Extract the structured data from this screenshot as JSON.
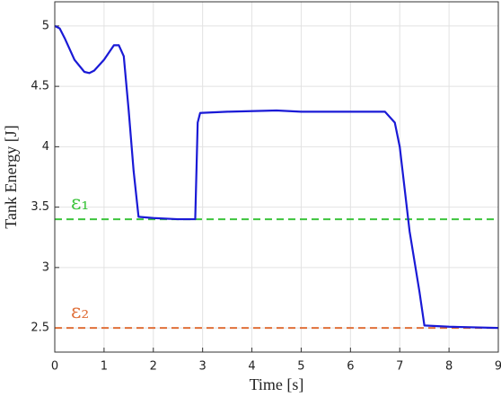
{
  "chart_data": {
    "type": "line",
    "xlabel": "Time [s]",
    "ylabel": "Tank Energy [J]",
    "x": [
      0,
      0.1,
      0.2,
      0.4,
      0.6,
      0.7,
      0.8,
      1.0,
      1.2,
      1.3,
      1.4,
      1.5,
      1.6,
      1.7,
      2.0,
      2.5,
      2.85,
      2.9,
      2.95,
      3.5,
      4.5,
      5,
      6,
      6.5,
      6.7,
      6.9,
      7.0,
      7.2,
      7.4,
      7.5,
      8,
      9
    ],
    "values": [
      5.0,
      4.98,
      4.9,
      4.72,
      4.62,
      4.61,
      4.63,
      4.72,
      4.84,
      4.84,
      4.75,
      4.3,
      3.8,
      3.42,
      3.41,
      3.4,
      3.4,
      4.2,
      4.28,
      4.29,
      4.3,
      4.29,
      4.29,
      4.29,
      4.29,
      4.2,
      4.0,
      3.3,
      2.8,
      2.52,
      2.51,
      2.5
    ],
    "color": "#1a1ad6",
    "thresholds": [
      {
        "label": "ε₁",
        "value": 3.4,
        "color": "#3cc43c"
      },
      {
        "label": "ε₂",
        "value": 2.5,
        "color": "#e0703a"
      }
    ],
    "xlim": [
      0,
      9
    ],
    "xticks": [
      0,
      1,
      2,
      3,
      4,
      5,
      6,
      7,
      8,
      9
    ],
    "ylim": [
      2.3,
      5.2
    ],
    "yticks": [
      2.5,
      3,
      3.5,
      4,
      4.5,
      5
    ],
    "grid": true
  }
}
